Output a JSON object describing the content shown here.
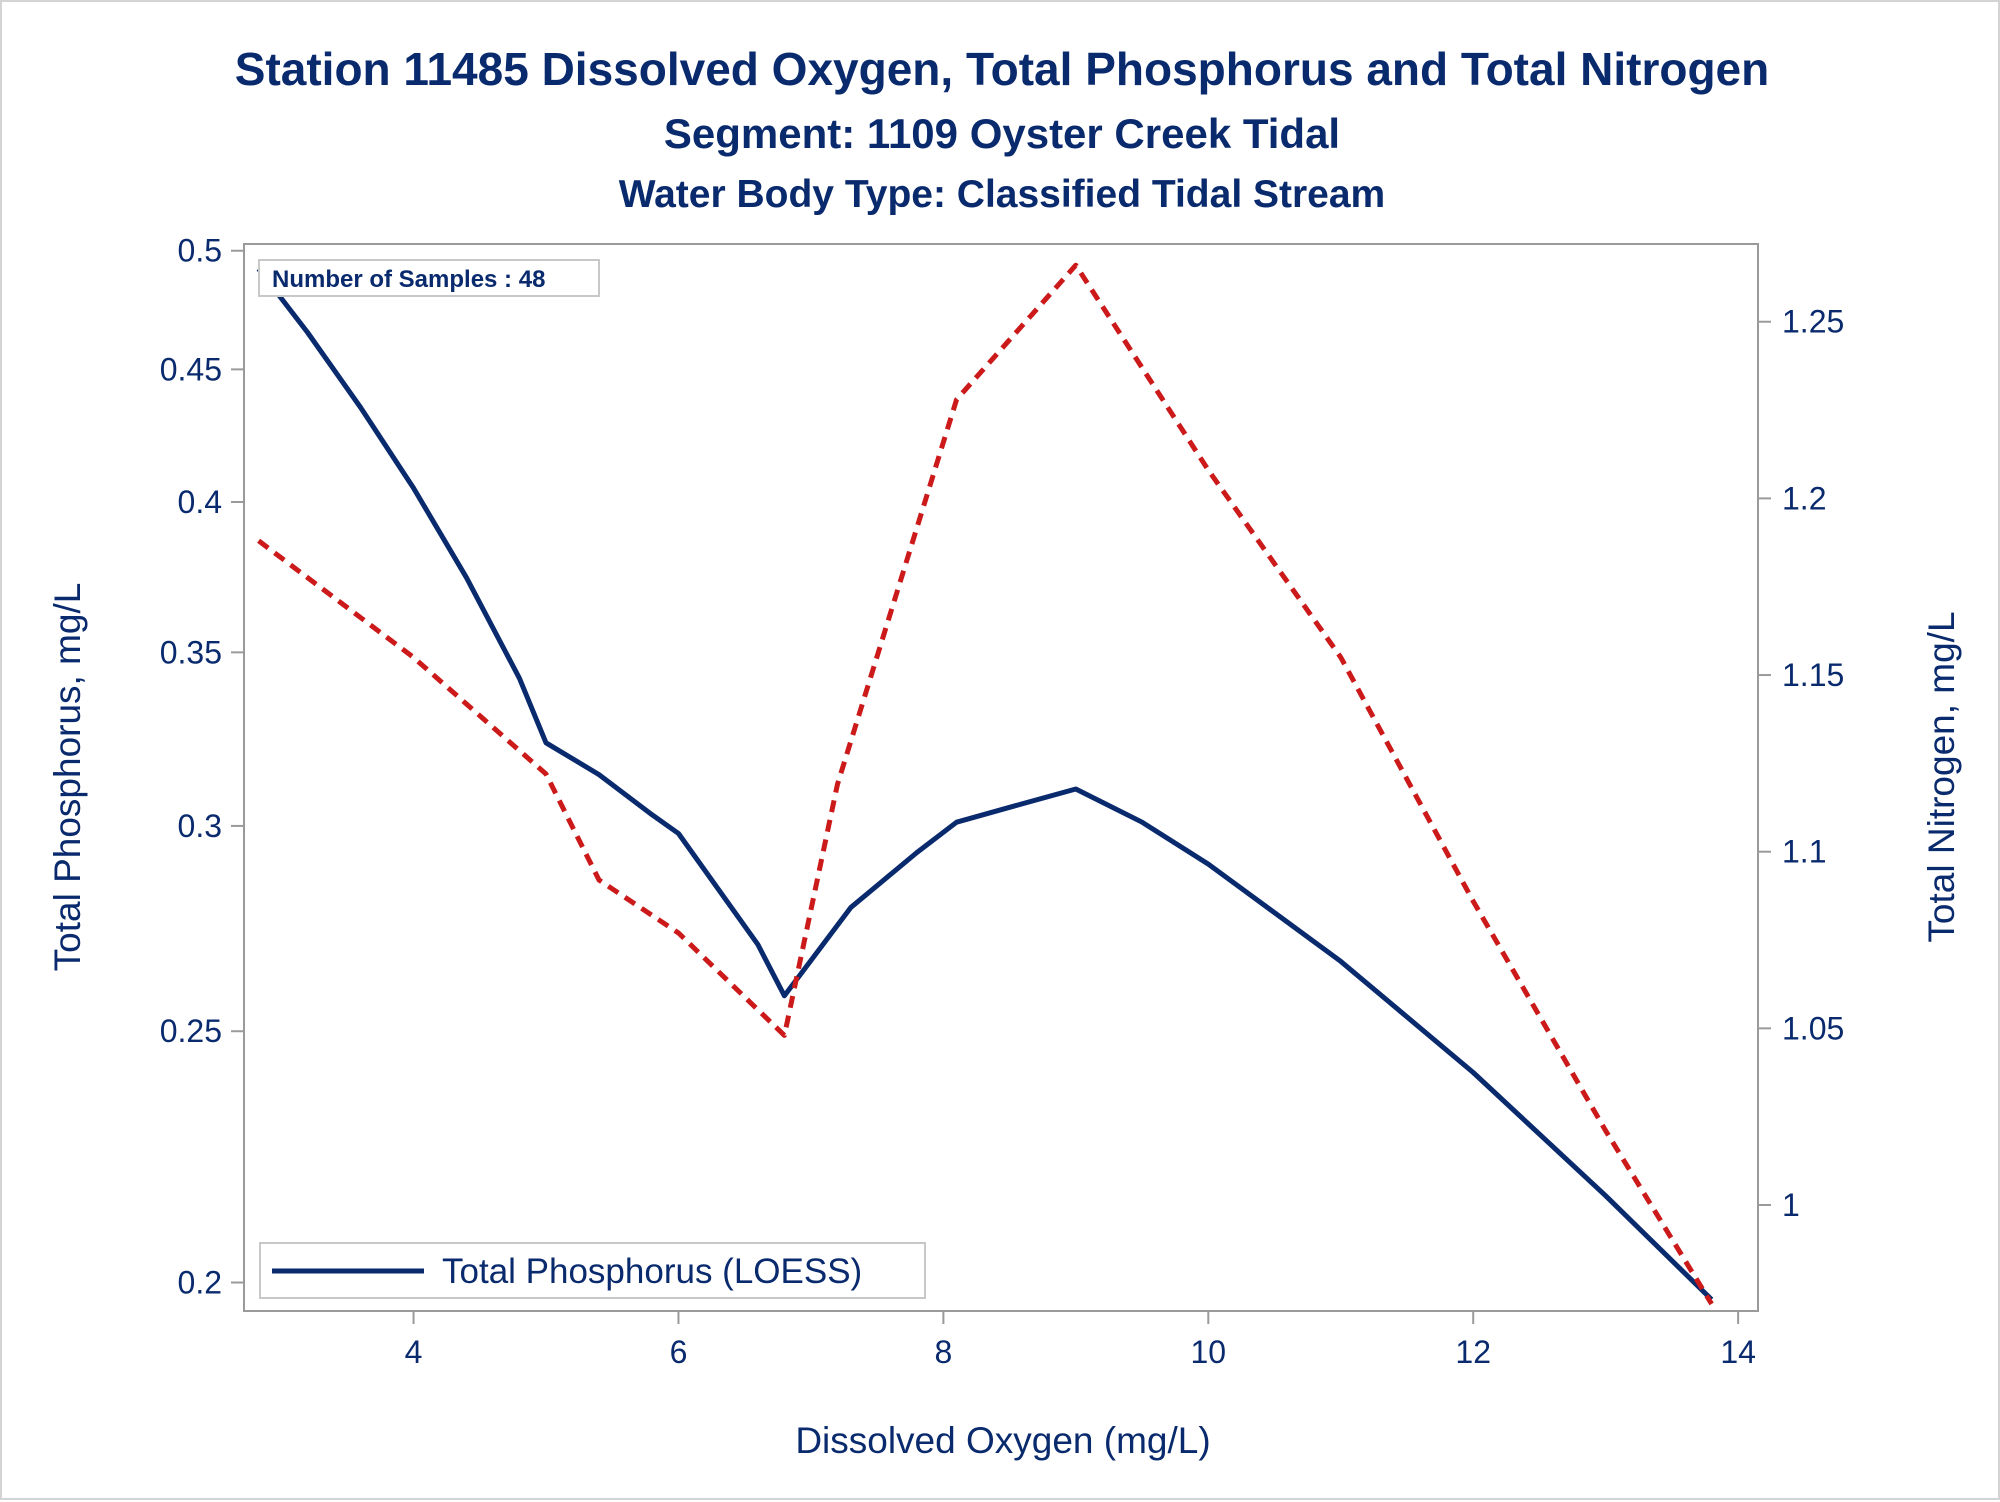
{
  "chart_data": {
    "type": "line",
    "title": "Station 11485  Dissolved Oxygen, Total Phosphorus and Total Nitrogen",
    "subtitle": "Segment: 1109  Oyster Creek Tidal",
    "subtitle2": "Water Body Type: Classified Tidal Stream",
    "xlabel": "Dissolved Oxygen (mg/L)",
    "ylabel_left": "Total Phosphorus, mg/L",
    "ylabel_right": "Total Nitrogen, mg/L",
    "xlim": [
      2.72,
      14.15
    ],
    "ylim_left": [
      0.195,
      0.503
    ],
    "ylim_right": [
      0.97,
      1.272
    ],
    "left_scale": "log",
    "x_ticks": [
      "4",
      "6",
      "8",
      "10",
      "12",
      "14"
    ],
    "y_left_ticks": [
      "0.2",
      "0.25",
      "0.3",
      "0.35",
      "0.4",
      "0.45",
      "0.5"
    ],
    "y_right_ticks": [
      "1",
      "1.05",
      "1.1",
      "1.15",
      "1.2",
      "1.25"
    ],
    "annotation": "Number of Samples : 48",
    "legend": {
      "position": "bottom-left",
      "entries": [
        "Total Phosphorus (LOESS)"
      ]
    },
    "series": [
      {
        "name": "Total Phosphorus (LOESS)",
        "axis": "left",
        "color": "#0a2a6e",
        "style": "solid",
        "x": [
          2.83,
          3.2,
          3.6,
          4.0,
          4.4,
          4.8,
          5.0,
          5.4,
          5.8,
          6.0,
          6.6,
          6.8,
          7.3,
          7.8,
          8.1,
          8.6,
          9.0,
          9.5,
          10.0,
          11.0,
          12.0,
          13.0,
          13.8
        ],
        "y": [
          0.492,
          0.465,
          0.435,
          0.405,
          0.374,
          0.342,
          0.323,
          0.314,
          0.303,
          0.298,
          0.27,
          0.258,
          0.279,
          0.293,
          0.301,
          0.306,
          0.31,
          0.301,
          0.29,
          0.266,
          0.241,
          0.216,
          0.197
        ]
      },
      {
        "name": "",
        "axis": "right",
        "color": "#cc1a1a",
        "style": "dashed",
        "x": [
          2.83,
          4.0,
          5.0,
          5.4,
          6.0,
          6.8,
          7.2,
          8.1,
          9.0,
          10.0,
          11.0,
          12.0,
          13.0,
          13.8
        ],
        "y": [
          1.188,
          1.155,
          1.122,
          1.092,
          1.077,
          1.048,
          1.119,
          1.228,
          1.266,
          1.208,
          1.155,
          1.086,
          1.021,
          0.972
        ]
      }
    ]
  }
}
